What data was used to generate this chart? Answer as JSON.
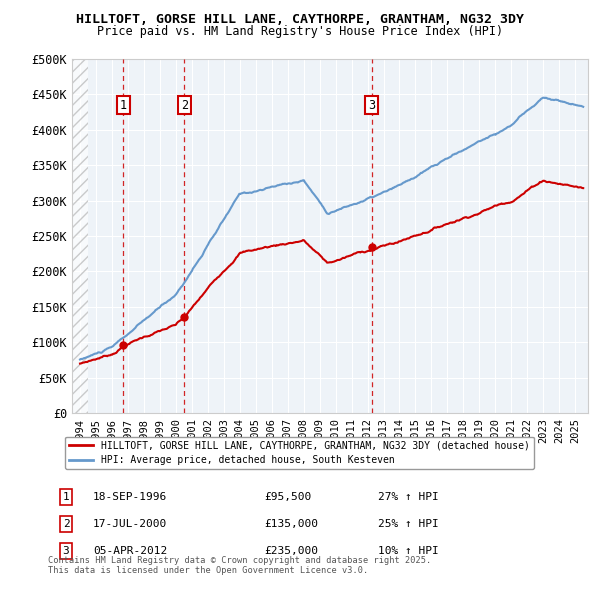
{
  "title1": "HILLTOFT, GORSE HILL LANE, CAYTHORPE, GRANTHAM, NG32 3DY",
  "title2": "Price paid vs. HM Land Registry's House Price Index (HPI)",
  "ylim": [
    0,
    500000
  ],
  "yticks": [
    0,
    50000,
    100000,
    150000,
    200000,
    250000,
    300000,
    350000,
    400000,
    450000,
    500000
  ],
  "ytick_labels": [
    "£0",
    "£50K",
    "£100K",
    "£150K",
    "£200K",
    "£250K",
    "£300K",
    "£350K",
    "£400K",
    "£450K",
    "£500K"
  ],
  "xlim_start": 1993.5,
  "xlim_end": 2025.8,
  "sale_color": "#cc0000",
  "hpi_color": "#6699cc",
  "legend_sale": "HILLTOFT, GORSE HILL LANE, CAYTHORPE, GRANTHAM, NG32 3DY (detached house)",
  "legend_hpi": "HPI: Average price, detached house, South Kesteven",
  "transactions": [
    {
      "num": 1,
      "date": "18-SEP-1996",
      "price": 95500,
      "label": "27% ↑ HPI",
      "year": 1996.71
    },
    {
      "num": 2,
      "date": "17-JUL-2000",
      "price": 135000,
      "label": "25% ↑ HPI",
      "year": 2000.54
    },
    {
      "num": 3,
      "date": "05-APR-2012",
      "price": 235000,
      "label": "10% ↑ HPI",
      "year": 2012.26
    }
  ],
  "footer1": "Contains HM Land Registry data © Crown copyright and database right 2025.",
  "footer2": "This data is licensed under the Open Government Licence v3.0.",
  "background_plot": "#eef3f8"
}
